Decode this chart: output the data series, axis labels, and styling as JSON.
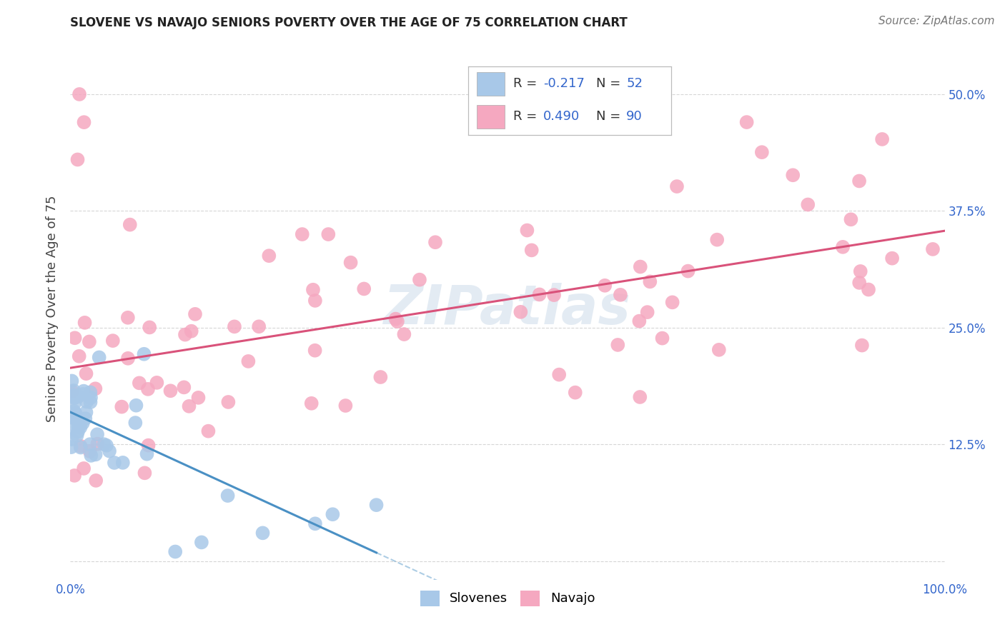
{
  "title": "SLOVENE VS NAVAJO SENIORS POVERTY OVER THE AGE OF 75 CORRELATION CHART",
  "source": "Source: ZipAtlas.com",
  "ylabel": "Seniors Poverty Over the Age of 75",
  "xlim": [
    0.0,
    1.0
  ],
  "ylim": [
    -0.02,
    0.56
  ],
  "x_tick_positions": [
    0.0,
    0.1,
    0.2,
    0.3,
    0.4,
    0.5,
    0.6,
    0.7,
    0.8,
    0.9,
    1.0
  ],
  "x_tick_labels": [
    "0.0%",
    "",
    "",
    "",
    "",
    "",
    "",
    "",
    "",
    "",
    "100.0%"
  ],
  "y_tick_positions": [
    0.0,
    0.125,
    0.25,
    0.375,
    0.5
  ],
  "y_tick_labels": [
    "",
    "12.5%",
    "25.0%",
    "37.5%",
    "50.0%"
  ],
  "slovene_color": "#a8c8e8",
  "navajo_color": "#f5a8c0",
  "slovene_line_color": "#4a90c4",
  "navajo_line_color": "#d9527a",
  "R_slovene": -0.217,
  "N_slovene": 52,
  "R_navajo": 0.49,
  "N_navajo": 90,
  "legend_label_slovene": "Slovenes",
  "legend_label_navajo": "Navajo",
  "watermark": "ZIPatlas",
  "background_color": "#ffffff",
  "grid_color": "#cccccc",
  "title_fontsize": 12,
  "axis_tick_fontsize": 12,
  "legend_fontsize": 13
}
